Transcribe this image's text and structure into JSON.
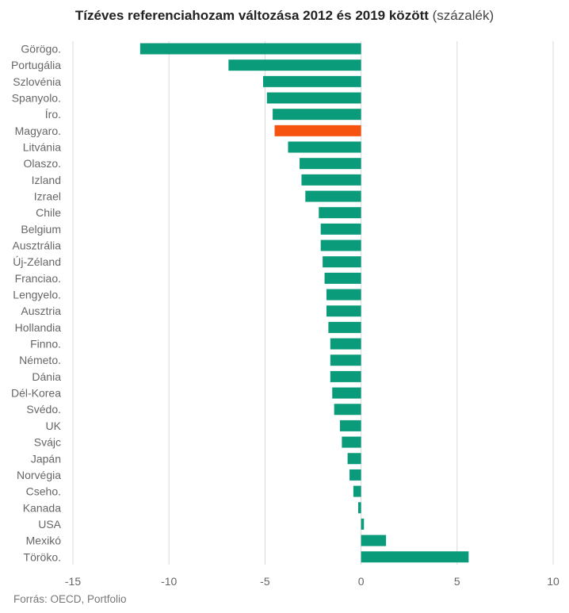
{
  "title": "Tízéves referenciahozam változása 2012 és 2019 között",
  "title_unit": "(százalék)",
  "source": "Forrás: OECD, Portfolio",
  "colors": {
    "bar": "#0a9b7a",
    "highlight": "#f5530f",
    "grid": "#d9d9d9",
    "label": "#666666"
  },
  "chart_data": {
    "type": "bar",
    "orientation": "horizontal",
    "title": "Tízéves referenciahozam változása 2012 és 2019 között (százalék)",
    "xlim": [
      -15,
      10
    ],
    "xticks": [
      -15,
      -10,
      -5,
      0,
      5,
      10
    ],
    "grid": true,
    "highlight": "Magyaro.",
    "categories": [
      "Görögo.",
      "Portugália",
      "Szlovénia",
      "Spanyolo.",
      "Íro.",
      "Magyaro.",
      "Litvánia",
      "Olaszo.",
      "Izland",
      "Izrael",
      "Chile",
      "Belgium",
      "Ausztrália",
      "Új-Zéland",
      "Franciao.",
      "Lengyelo.",
      "Ausztria",
      "Hollandia",
      "Finno.",
      "Németo.",
      "Dánia",
      "Dél-Korea",
      "Svédo.",
      "UK",
      "Svájc",
      "Japán",
      "Norvégia",
      "Cseho.",
      "Kanada",
      "USA",
      "Mexikó",
      "Töröko."
    ],
    "values": [
      -11.5,
      -6.9,
      -5.1,
      -4.9,
      -4.6,
      -4.5,
      -3.8,
      -3.2,
      -3.1,
      -2.9,
      -2.2,
      -2.1,
      -2.1,
      -2.0,
      -1.9,
      -1.8,
      -1.8,
      -1.7,
      -1.6,
      -1.6,
      -1.6,
      -1.5,
      -1.4,
      -1.1,
      -1.0,
      -0.7,
      -0.6,
      -0.4,
      -0.15,
      0.15,
      1.3,
      5.6
    ]
  }
}
